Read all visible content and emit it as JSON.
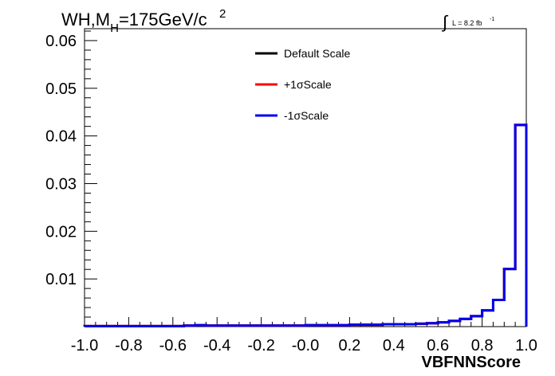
{
  "chart_data": {
    "type": "line",
    "title": "WH,M",
    "title_sub": "H",
    "title_rest": "=175GeV/c",
    "title_sup": "2",
    "lumi_integral": "∫",
    "lumi_text": "L = 8.2 fb",
    "lumi_sup": "-1",
    "xlabel": "VBFNNScore",
    "ylabel": "",
    "xlim": [
      -1.0,
      1.0
    ],
    "ylim": [
      0,
      0.0625
    ],
    "x_ticks": [
      "-1.0",
      "-0.8",
      "-0.6",
      "-0.4",
      "-0.2",
      "-0.0",
      "0.2",
      "0.4",
      "0.6",
      "0.8",
      "1.0"
    ],
    "x_tick_values": [
      -1.0,
      -0.8,
      -0.6,
      -0.4,
      -0.2,
      0.0,
      0.2,
      0.4,
      0.6,
      0.8,
      1.0
    ],
    "y_ticks": [
      "0.01",
      "0.02",
      "0.03",
      "0.04",
      "0.05",
      "0.06"
    ],
    "y_tick_values": [
      0.01,
      0.02,
      0.03,
      0.04,
      0.05,
      0.06
    ],
    "grid": false,
    "legend_position": "top-center",
    "bin_edges": [
      -1.0,
      -0.95,
      -0.9,
      -0.85,
      -0.8,
      -0.75,
      -0.7,
      -0.65,
      -0.6,
      -0.55,
      -0.5,
      -0.45,
      -0.4,
      -0.35,
      -0.3,
      -0.25,
      -0.2,
      -0.15,
      -0.1,
      -0.05,
      0.0,
      0.05,
      0.1,
      0.15,
      0.2,
      0.25,
      0.3,
      0.35,
      0.4,
      0.45,
      0.5,
      0.55,
      0.6,
      0.65,
      0.7,
      0.75,
      0.8,
      0.85,
      0.9,
      0.95,
      1.0
    ],
    "series": [
      {
        "name": "Default Scale",
        "color": "#000000",
        "values": [
          0.0001,
          0.0001,
          0.0001,
          0.0001,
          0.0001,
          0.0001,
          0.0001,
          0.0001,
          0.0001,
          0.0002,
          0.0003,
          0.0002,
          0.0002,
          0.0002,
          0.0002,
          0.0002,
          0.0002,
          0.0002,
          0.0002,
          0.0002,
          0.0003,
          0.0003,
          0.0003,
          0.0003,
          0.0004,
          0.0004,
          0.0004,
          0.0005,
          0.0005,
          0.0005,
          0.0006,
          0.0007,
          0.0009,
          0.0012,
          0.0016,
          0.0022,
          0.0034,
          0.0056,
          0.0121,
          0.0423
        ]
      },
      {
        "name": "+1σScale",
        "color": "#ff0000",
        "values": [
          0.0001,
          0.0001,
          0.0001,
          0.0001,
          0.0001,
          0.0001,
          0.0001,
          0.0001,
          0.0001,
          0.0002,
          0.0003,
          0.0002,
          0.0002,
          0.0002,
          0.0002,
          0.0002,
          0.0002,
          0.0002,
          0.0002,
          0.0002,
          0.0003,
          0.0003,
          0.0003,
          0.0003,
          0.0004,
          0.0004,
          0.0004,
          0.0005,
          0.0005,
          0.0005,
          0.0006,
          0.0007,
          0.0009,
          0.0012,
          0.0016,
          0.0022,
          0.0034,
          0.0056,
          0.0121,
          0.0423
        ]
      },
      {
        "name": "-1σScale",
        "color": "#0000ee",
        "values": [
          0.0001,
          0.0001,
          0.0001,
          0.0001,
          0.0001,
          0.0001,
          0.0001,
          0.0001,
          0.0001,
          0.0002,
          0.0003,
          0.0002,
          0.0002,
          0.0002,
          0.0002,
          0.0002,
          0.0002,
          0.0002,
          0.0002,
          0.0002,
          0.0003,
          0.0003,
          0.0003,
          0.0003,
          0.0004,
          0.0004,
          0.0004,
          0.0005,
          0.0005,
          0.0005,
          0.0006,
          0.0007,
          0.0009,
          0.0012,
          0.0016,
          0.0022,
          0.0034,
          0.0056,
          0.0121,
          0.0423
        ]
      }
    ]
  }
}
